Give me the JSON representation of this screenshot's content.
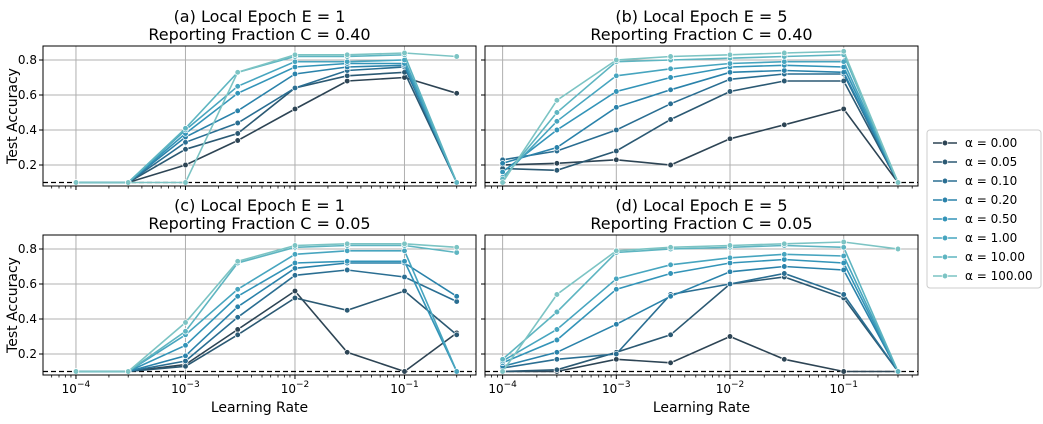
{
  "ylabel": "Test Accuracy",
  "xlabel": "Learning Rate",
  "legend": {
    "placement": "right",
    "entries": [
      "α = 0.00",
      "α = 0.05",
      "α = 0.10",
      "α = 0.20",
      "α = 0.50",
      "α = 1.00",
      "α = 10.00",
      "α = 100.00"
    ]
  },
  "colors": [
    "#2d4454",
    "#2b5973",
    "#2a6e92",
    "#2a82aa",
    "#3394b8",
    "#47a5bf",
    "#5eb5c1",
    "#7cc4c4"
  ],
  "x_ticks": [
    {
      "value": 0.0001,
      "base": "10",
      "exp": "−4"
    },
    {
      "value": 0.001,
      "base": "10",
      "exp": "−3"
    },
    {
      "value": 0.01,
      "base": "10",
      "exp": "−2"
    },
    {
      "value": 0.1,
      "base": "10",
      "exp": "−1"
    }
  ],
  "y_ticks": [
    "0.2",
    "0.4",
    "0.6",
    "0.8"
  ],
  "chart_data": [
    {
      "type": "line",
      "title_line1": "(a) Local Epoch E = 1",
      "title_line2": "Reporting Fraction C = 0.40",
      "xscale": "log",
      "xlim": [
        5e-05,
        0.45
      ],
      "ylim": [
        0.08,
        0.88
      ],
      "grid": true,
      "baseline": 0.1,
      "x": [
        0.0001,
        0.0003,
        0.001,
        0.003,
        0.01,
        0.03,
        0.1,
        0.3
      ],
      "series": [
        {
          "name": "α = 0.00",
          "values": [
            0.1,
            0.1,
            0.2,
            0.34,
            0.52,
            0.68,
            0.7,
            0.61
          ]
        },
        {
          "name": "α = 0.05",
          "values": [
            0.1,
            0.1,
            0.29,
            0.38,
            0.64,
            0.71,
            0.73,
            0.1
          ]
        },
        {
          "name": "α = 0.10",
          "values": [
            0.1,
            0.1,
            0.33,
            0.44,
            0.64,
            0.74,
            0.76,
            0.1
          ]
        },
        {
          "name": "α = 0.20",
          "values": [
            0.1,
            0.1,
            0.36,
            0.51,
            0.72,
            0.76,
            0.77,
            0.1
          ]
        },
        {
          "name": "α = 0.50",
          "values": [
            0.1,
            0.1,
            0.38,
            0.61,
            0.76,
            0.78,
            0.78,
            0.1
          ]
        },
        {
          "name": "α = 1.00",
          "values": [
            0.1,
            0.1,
            0.4,
            0.65,
            0.79,
            0.79,
            0.8,
            0.1
          ]
        },
        {
          "name": "α = 10.00",
          "values": [
            0.1,
            0.1,
            0.41,
            0.73,
            0.82,
            0.82,
            0.83,
            0.1
          ]
        },
        {
          "name": "α = 100.00",
          "values": [
            0.1,
            0.1,
            0.1,
            0.73,
            0.83,
            0.83,
            0.84,
            0.82
          ]
        }
      ]
    },
    {
      "type": "line",
      "title_line1": "(b) Local Epoch E = 5",
      "title_line2": "Reporting Fraction C = 0.40",
      "xscale": "log",
      "xlim": [
        7e-05,
        0.45
      ],
      "ylim": [
        0.08,
        0.88
      ],
      "grid": true,
      "baseline": 0.1,
      "x": [
        0.0001,
        0.0003,
        0.001,
        0.003,
        0.01,
        0.03,
        0.1,
        0.3
      ],
      "series": [
        {
          "name": "α = 0.00",
          "values": [
            0.2,
            0.21,
            0.23,
            0.2,
            0.35,
            0.43,
            0.52,
            0.1
          ]
        },
        {
          "name": "α = 0.05",
          "values": [
            0.18,
            0.17,
            0.28,
            0.46,
            0.62,
            0.68,
            0.68,
            0.1
          ]
        },
        {
          "name": "α = 0.10",
          "values": [
            0.23,
            0.28,
            0.4,
            0.55,
            0.69,
            0.72,
            0.72,
            0.1
          ]
        },
        {
          "name": "α = 0.20",
          "values": [
            0.21,
            0.3,
            0.53,
            0.63,
            0.73,
            0.74,
            0.73,
            0.1
          ]
        },
        {
          "name": "α = 0.50",
          "values": [
            0.16,
            0.4,
            0.62,
            0.7,
            0.76,
            0.77,
            0.76,
            0.1
          ]
        },
        {
          "name": "α = 1.00",
          "values": [
            0.13,
            0.45,
            0.71,
            0.75,
            0.78,
            0.79,
            0.79,
            0.1
          ]
        },
        {
          "name": "α = 10.00",
          "values": [
            0.12,
            0.5,
            0.79,
            0.8,
            0.81,
            0.82,
            0.83,
            0.1
          ]
        },
        {
          "name": "α = 100.00",
          "values": [
            0.1,
            0.57,
            0.8,
            0.82,
            0.83,
            0.84,
            0.85,
            0.1
          ]
        }
      ]
    },
    {
      "type": "line",
      "title_line1": "(c) Local Epoch E = 1",
      "title_line2": "Reporting Fraction C = 0.05",
      "xscale": "log",
      "xlim": [
        5e-05,
        0.45
      ],
      "ylim": [
        0.08,
        0.88
      ],
      "grid": true,
      "baseline": 0.1,
      "x": [
        0.0001,
        0.0003,
        0.001,
        0.003,
        0.01,
        0.03,
        0.1,
        0.3
      ],
      "series": [
        {
          "name": "α = 0.00",
          "values": [
            0.1,
            0.1,
            0.14,
            0.34,
            0.56,
            0.21,
            0.1,
            0.32
          ]
        },
        {
          "name": "α = 0.05",
          "values": [
            0.1,
            0.1,
            0.13,
            0.31,
            0.52,
            0.45,
            0.56,
            0.31
          ]
        },
        {
          "name": "α = 0.10",
          "values": [
            0.1,
            0.1,
            0.16,
            0.41,
            0.65,
            0.68,
            0.64,
            0.5
          ]
        },
        {
          "name": "α = 0.20",
          "values": [
            0.1,
            0.1,
            0.19,
            0.47,
            0.69,
            0.72,
            0.72,
            0.53
          ]
        },
        {
          "name": "α = 0.50",
          "values": [
            0.1,
            0.1,
            0.25,
            0.53,
            0.72,
            0.73,
            0.73,
            0.1
          ]
        },
        {
          "name": "α = 1.00",
          "values": [
            0.1,
            0.1,
            0.31,
            0.57,
            0.77,
            0.79,
            0.79,
            0.1
          ]
        },
        {
          "name": "α = 10.00",
          "values": [
            0.1,
            0.1,
            0.33,
            0.72,
            0.81,
            0.82,
            0.82,
            0.78
          ]
        },
        {
          "name": "α = 100.00",
          "values": [
            0.1,
            0.1,
            0.38,
            0.73,
            0.82,
            0.83,
            0.83,
            0.81
          ]
        }
      ]
    },
    {
      "type": "line",
      "title_line1": "(d) Local Epoch E = 5",
      "title_line2": "Reporting Fraction C = 0.05",
      "xscale": "log",
      "xlim": [
        7e-05,
        0.45
      ],
      "ylim": [
        0.08,
        0.88
      ],
      "grid": true,
      "baseline": 0.1,
      "x": [
        0.0001,
        0.0003,
        0.001,
        0.003,
        0.01,
        0.03,
        0.1,
        0.3
      ],
      "series": [
        {
          "name": "α = 0.00",
          "values": [
            0.1,
            0.1,
            0.17,
            0.15,
            0.3,
            0.17,
            0.1,
            0.1
          ]
        },
        {
          "name": "α = 0.05",
          "values": [
            0.1,
            0.11,
            0.21,
            0.31,
            0.6,
            0.64,
            0.52,
            0.1
          ]
        },
        {
          "name": "α = 0.10",
          "values": [
            0.12,
            0.17,
            0.2,
            0.54,
            0.6,
            0.66,
            0.54,
            0.1
          ]
        },
        {
          "name": "α = 0.20",
          "values": [
            0.13,
            0.21,
            0.37,
            0.53,
            0.67,
            0.7,
            0.68,
            0.1
          ]
        },
        {
          "name": "α = 0.50",
          "values": [
            0.15,
            0.28,
            0.57,
            0.66,
            0.72,
            0.74,
            0.72,
            0.1
          ]
        },
        {
          "name": "α = 1.00",
          "values": [
            0.16,
            0.34,
            0.63,
            0.71,
            0.75,
            0.77,
            0.76,
            0.1
          ]
        },
        {
          "name": "α = 10.00",
          "values": [
            0.17,
            0.44,
            0.78,
            0.8,
            0.81,
            0.82,
            0.81,
            0.1
          ]
        },
        {
          "name": "α = 100.00",
          "values": [
            0.1,
            0.54,
            0.79,
            0.81,
            0.82,
            0.83,
            0.84,
            0.8
          ]
        }
      ]
    }
  ]
}
